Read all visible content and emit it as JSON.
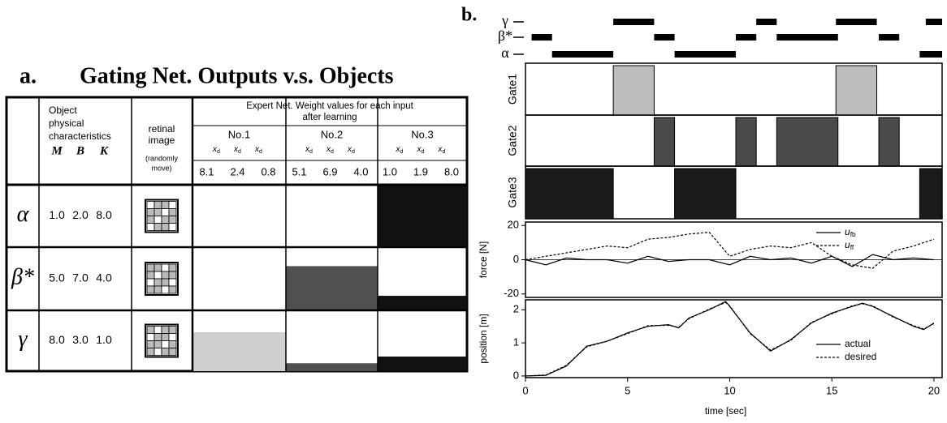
{
  "panel_a": {
    "label": "a.",
    "title": "Gating Net. Outputs v.s. Objects",
    "header": {
      "object_lines": [
        "Object",
        "physical",
        "characteristics"
      ],
      "params": [
        "M",
        "B",
        "K"
      ],
      "retinal_lines": [
        "retinal",
        "image"
      ],
      "retinal_note_lines": [
        "(randomly",
        "move)"
      ],
      "expert_lines": [
        "Expert Net. Weight values for each input",
        "after learning"
      ],
      "nets": [
        {
          "name": "No.1",
          "color": "#cfcfcf",
          "inputs": [
            {
              "base": "x",
              "sub": "d"
            },
            {
              "base": "x",
              "sub": "d"
            },
            {
              "base": "x",
              "sub": "d"
            }
          ],
          "weights": [
            "8.1",
            "2.4",
            "0.8"
          ]
        },
        {
          "name": "No.2",
          "color": "#505050",
          "inputs": [
            {
              "base": "x",
              "sub": "d"
            },
            {
              "base": "x",
              "sub": "d"
            },
            {
              "base": "x",
              "sub": "d"
            }
          ],
          "weights": [
            "5.1",
            "6.9",
            "4.0"
          ]
        },
        {
          "name": "No.3",
          "color": "#111111",
          "inputs": [
            {
              "base": "x",
              "sub": "d"
            },
            {
              "base": "x",
              "sub": "d"
            },
            {
              "base": "x",
              "sub": "d"
            }
          ],
          "weights": [
            "1.0",
            "1.9",
            "8.0"
          ]
        }
      ]
    },
    "rows": [
      {
        "object": "α",
        "params": [
          "1.0",
          "2.0",
          "8.0"
        ],
        "gate_levels": [
          0,
          0,
          1.0
        ]
      },
      {
        "object": "β*",
        "params": [
          "5.0",
          "7.0",
          "4.0"
        ],
        "gate_levels": [
          0,
          0.7,
          0.23
        ]
      },
      {
        "object": "γ",
        "params": [
          "8.0",
          "3.0",
          "1.0"
        ],
        "gate_levels": [
          0.64,
          0.13,
          0.24
        ]
      }
    ]
  },
  "panel_b": {
    "label": "b.",
    "xlim": [
      0,
      20.4
    ],
    "xticks": [
      0,
      5,
      10,
      15,
      20
    ],
    "xlabel": "time [sec]",
    "objects": [
      {
        "name": "γ",
        "intervals": [
          [
            4.3,
            6.3
          ],
          [
            11.3,
            12.3
          ],
          [
            15.2,
            17.2
          ],
          [
            19.6,
            20.4
          ]
        ]
      },
      {
        "name": "β*",
        "intervals": [
          [
            0.3,
            1.3
          ],
          [
            6.3,
            7.3
          ],
          [
            10.3,
            11.3
          ],
          [
            12.3,
            15.3
          ],
          [
            17.3,
            18.3
          ]
        ]
      },
      {
        "name": "α",
        "intervals": [
          [
            1.3,
            4.3
          ],
          [
            7.3,
            10.3
          ],
          [
            19.3,
            20.4
          ]
        ]
      }
    ],
    "gates": [
      {
        "name": "Gate1",
        "color": "#bdbdbd",
        "intervals": [
          [
            4.3,
            6.3
          ],
          [
            15.2,
            17.2
          ]
        ]
      },
      {
        "name": "Gate2",
        "color": "#4a4a4a",
        "intervals": [
          [
            6.3,
            7.3
          ],
          [
            10.3,
            11.3
          ],
          [
            12.3,
            15.3
          ],
          [
            17.3,
            18.3
          ]
        ]
      },
      {
        "name": "Gate3",
        "color": "#1a1a1a",
        "intervals": [
          [
            0,
            4.3
          ],
          [
            7.3,
            10.3
          ],
          [
            19.3,
            20.4
          ]
        ]
      }
    ],
    "force": {
      "type": "line",
      "ylabel": "force [N]",
      "ylim": [
        -22,
        22
      ],
      "yticks": [
        -20,
        0,
        20
      ],
      "x": [
        0,
        1,
        2,
        3,
        4,
        5,
        6,
        7,
        8,
        9,
        10,
        11,
        12,
        13,
        14,
        15,
        16,
        17,
        18,
        19,
        20
      ],
      "series": [
        {
          "name": {
            "base": "u",
            "sub": "fb"
          },
          "color": "#000000",
          "dash": false,
          "values": [
            0,
            -3,
            1,
            0,
            0,
            -2,
            2,
            -1,
            0,
            0,
            -3,
            2,
            0,
            1,
            -2,
            2,
            -4,
            3,
            0,
            1,
            0
          ]
        },
        {
          "name": {
            "base": "u",
            "sub": "ff"
          },
          "color": "#000000",
          "dash": true,
          "values": [
            0,
            2,
            4,
            6,
            8,
            7,
            12,
            13,
            15,
            16,
            2,
            6,
            8,
            7,
            10,
            2,
            -3,
            -5,
            5,
            8,
            12
          ]
        }
      ]
    },
    "position": {
      "type": "line",
      "ylabel": "position [m]",
      "ylim": [
        -0.05,
        2.3
      ],
      "yticks": [
        0,
        1,
        2
      ],
      "x": [
        0,
        1,
        2,
        3,
        4,
        5,
        6,
        7,
        7.5,
        8,
        9,
        9.8,
        10,
        11,
        12,
        13,
        14,
        15,
        16,
        16.5,
        17,
        18,
        19,
        19.5,
        20
      ],
      "series": [
        {
          "name": "actual",
          "color": "#000000",
          "dash": false,
          "values": [
            0,
            0.02,
            0.3,
            0.9,
            1.05,
            1.3,
            1.5,
            1.55,
            1.45,
            1.75,
            2.0,
            2.25,
            2.1,
            1.3,
            0.75,
            1.1,
            1.6,
            1.9,
            2.1,
            2.2,
            2.1,
            1.8,
            1.5,
            1.4,
            1.6
          ]
        },
        {
          "name": "desired",
          "color": "#000000",
          "dash": true,
          "values": [
            0,
            0.03,
            0.32,
            0.88,
            1.05,
            1.28,
            1.52,
            1.53,
            1.47,
            1.73,
            2.02,
            2.22,
            2.12,
            1.28,
            0.78,
            1.08,
            1.62,
            1.88,
            2.12,
            2.18,
            2.12,
            1.78,
            1.52,
            1.42,
            1.58
          ]
        }
      ]
    }
  }
}
